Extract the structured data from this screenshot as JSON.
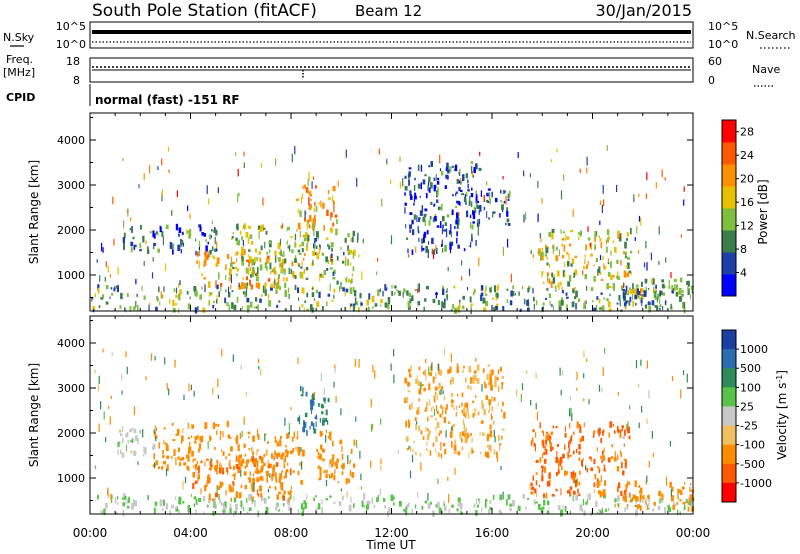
{
  "header": {
    "title": "South Pole Station (fitACF)",
    "beam": "Beam 12",
    "date": "30/Jan/2015"
  },
  "top_panels": {
    "nsky_label": "N.Sky",
    "nsearch_label": "N.Search",
    "nsky_ticks": [
      "10^5",
      "10^0"
    ],
    "nsearch_ticks": [
      "10^5",
      "10^0"
    ],
    "freq_label": "Freq.",
    "freq_unit": "[MHz]",
    "freq_ticks": [
      "18",
      "8"
    ],
    "nave_label": "Nave",
    "nave_ticks": [
      "60",
      "0"
    ],
    "cpid_label": "CPID",
    "cpid_text": "normal (fast) -151 RF"
  },
  "colors": {
    "power_scale": [
      "#0000ff",
      "#1f3fa8",
      "#3a7d4a",
      "#7fbf3f",
      "#e8c000",
      "#ff9000",
      "#ff5a00",
      "#ff0000"
    ],
    "velocity_scale": [
      "#1a3fa0",
      "#2a6db0",
      "#2e8b57",
      "#59c24a",
      "#c8c8c8",
      "#f0c060",
      "#ff8c00",
      "#ff5a00",
      "#ff0000"
    ]
  },
  "chart_data": [
    {
      "type": "heatmap",
      "panel": "power",
      "ylabel": "Slant Range [km]",
      "y_ticks": [
        "1000",
        "2000",
        "3000",
        "4000"
      ],
      "ylim": [
        200,
        4600
      ],
      "xlim_hours": [
        0,
        24
      ],
      "colorbar_label": "Power [dB]",
      "colorbar_ticks": [
        "4",
        "8",
        "12",
        "16",
        "20",
        "24",
        "28"
      ],
      "colorbar_range": [
        0,
        30
      ],
      "echo_regions": [
        {
          "t_start": 0.0,
          "t_end": 24.0,
          "r_min": 200,
          "r_max": 750,
          "level": 10
        },
        {
          "t_start": 1.3,
          "t_end": 5.0,
          "r_min": 1500,
          "r_max": 2100,
          "level": 6
        },
        {
          "t_start": 4.2,
          "t_end": 7.8,
          "r_min": 700,
          "r_max": 1500,
          "level": 18
        },
        {
          "t_start": 5.5,
          "t_end": 8.6,
          "r_min": 900,
          "r_max": 2100,
          "level": 14
        },
        {
          "t_start": 8.2,
          "t_end": 9.8,
          "r_min": 2000,
          "r_max": 3000,
          "level": 20
        },
        {
          "t_start": 8.5,
          "t_end": 10.5,
          "r_min": 800,
          "r_max": 2000,
          "level": 12
        },
        {
          "t_start": 12.5,
          "t_end": 15.5,
          "r_min": 1500,
          "r_max": 3500,
          "level": 5
        },
        {
          "t_start": 14.8,
          "t_end": 16.7,
          "r_min": 2100,
          "r_max": 2900,
          "level": 6
        },
        {
          "t_start": 17.8,
          "t_end": 21.5,
          "r_min": 700,
          "r_max": 2000,
          "level": 16
        },
        {
          "t_start": 21.0,
          "t_end": 24.0,
          "r_min": 300,
          "r_max": 900,
          "level": 10
        }
      ]
    },
    {
      "type": "heatmap",
      "panel": "velocity",
      "ylabel": "Slant Range [km]",
      "y_ticks": [
        "1000",
        "2000",
        "3000",
        "4000"
      ],
      "ylim": [
        200,
        4600
      ],
      "xlim_hours": [
        0,
        24
      ],
      "x_ticks": [
        "00:00",
        "04:00",
        "08:00",
        "12:00",
        "16:00",
        "20:00",
        "00:00"
      ],
      "xlabel": "Time UT",
      "colorbar_label": "Velocity [m s",
      "colorbar_label_sup": "-1",
      "colorbar_label_end": "]",
      "colorbar_ticks": [
        "1000",
        "500",
        "100",
        "25",
        "-25",
        "-100",
        "-500",
        "-1000"
      ],
      "echo_regions": [
        {
          "t_start": 0.0,
          "t_end": 24.0,
          "r_min": 200,
          "r_max": 600,
          "velocity": 25
        },
        {
          "t_start": 1.0,
          "t_end": 2.5,
          "r_min": 1500,
          "r_max": 2100,
          "velocity": 0
        },
        {
          "t_start": 2.5,
          "t_end": 5.5,
          "r_min": 1200,
          "r_max": 2200,
          "velocity": -300
        },
        {
          "t_start": 4.0,
          "t_end": 8.0,
          "r_min": 500,
          "r_max": 1500,
          "velocity": -400
        },
        {
          "t_start": 5.5,
          "t_end": 8.5,
          "r_min": 900,
          "r_max": 2000,
          "velocity": -300
        },
        {
          "t_start": 8.2,
          "t_end": 9.5,
          "r_min": 2000,
          "r_max": 3000,
          "velocity": 500
        },
        {
          "t_start": 9.0,
          "t_end": 10.5,
          "r_min": 800,
          "r_max": 2000,
          "velocity": -200
        },
        {
          "t_start": 12.5,
          "t_end": 16.5,
          "r_min": 1500,
          "r_max": 3500,
          "velocity": -100
        },
        {
          "t_start": 17.5,
          "t_end": 21.5,
          "r_min": 600,
          "r_max": 2200,
          "velocity": -600
        },
        {
          "t_start": 21.0,
          "t_end": 24.0,
          "r_min": 300,
          "r_max": 900,
          "velocity": -300
        }
      ]
    }
  ]
}
